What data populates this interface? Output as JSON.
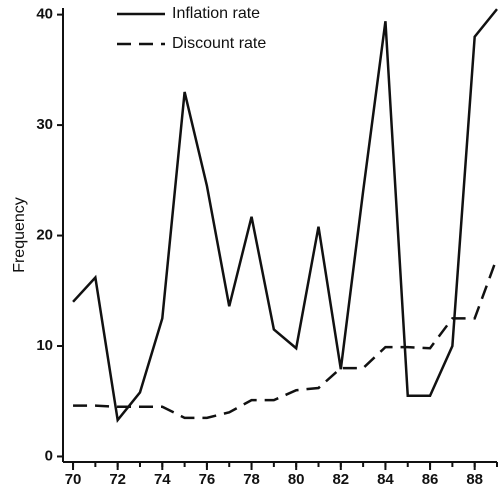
{
  "chart_data": {
    "type": "line",
    "y_label": "Frequency",
    "x": [
      70,
      71,
      72,
      73,
      74,
      75,
      76,
      77,
      78,
      79,
      80,
      81,
      82,
      83,
      84,
      85,
      86,
      87,
      88,
      89
    ],
    "series": [
      {
        "name": "Inflation rate",
        "color": "#111111",
        "dash": "solid",
        "values": [
          14,
          16.2,
          3.3,
          5.8,
          12.5,
          33,
          24.5,
          13.6,
          21.7,
          11.5,
          9.8,
          20.8,
          7.9,
          24,
          39.4,
          5.5,
          5.5,
          10,
          38,
          40.5
        ]
      },
      {
        "name": "Discount rate",
        "color": "#111111",
        "dash": "dashed",
        "values": [
          4.6,
          4.6,
          4.5,
          4.5,
          4.5,
          3.5,
          3.5,
          4,
          5.1,
          5.1,
          6,
          6.2,
          8,
          8,
          9.9,
          9.9,
          9.8,
          12.5,
          12.5,
          18
        ]
      }
    ],
    "xlim": [
      69.55,
      89
    ],
    "xticks": [
      70,
      72,
      74,
      76,
      78,
      80,
      82,
      84,
      86,
      88
    ],
    "ylim": [
      -0.5,
      40.6
    ],
    "yticks": [
      0,
      10,
      20,
      30,
      40
    ],
    "legend": "top"
  }
}
